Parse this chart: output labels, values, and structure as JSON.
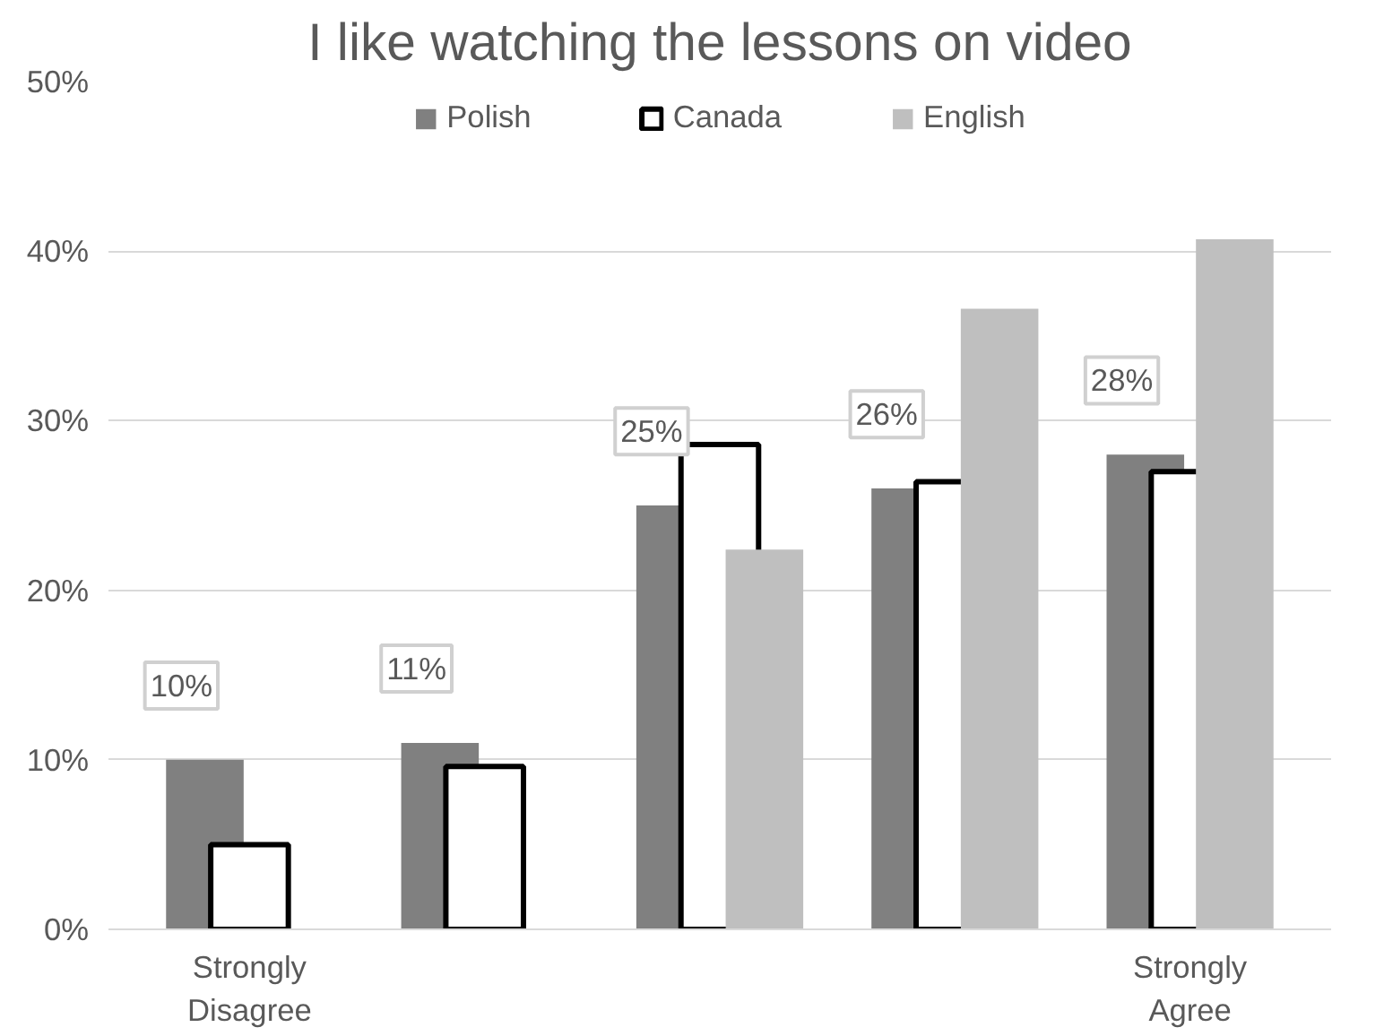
{
  "chart_data": {
    "type": "bar",
    "title": "I like watching the lessons on video",
    "categories": [
      "Strongly Disagree",
      null,
      null,
      null,
      "Strongly Agree"
    ],
    "series": [
      {
        "name": "Polish",
        "color": "#808080",
        "values": [
          10,
          11,
          25,
          26,
          28
        ],
        "value_labels": [
          "10%",
          "11%",
          "25%",
          "26%",
          "28%"
        ]
      },
      {
        "name": "Canada",
        "color": "#ffffff",
        "values": [
          5,
          9.6,
          28.6,
          26.4,
          27
        ]
      },
      {
        "name": "English",
        "color": "#bfbfbf",
        "values": [
          null,
          null,
          22.4,
          36.6,
          40.7
        ]
      }
    ],
    "ylim": [
      0,
      50
    ],
    "yticks": [
      {
        "value": 0,
        "label": "0%"
      },
      {
        "value": 10,
        "label": "10%"
      },
      {
        "value": 20,
        "label": "20%"
      },
      {
        "value": 30,
        "label": "30%"
      },
      {
        "value": 40,
        "label": "40%"
      },
      {
        "value": 50,
        "label": "50%"
      }
    ],
    "grid": "y",
    "legend": "top"
  }
}
